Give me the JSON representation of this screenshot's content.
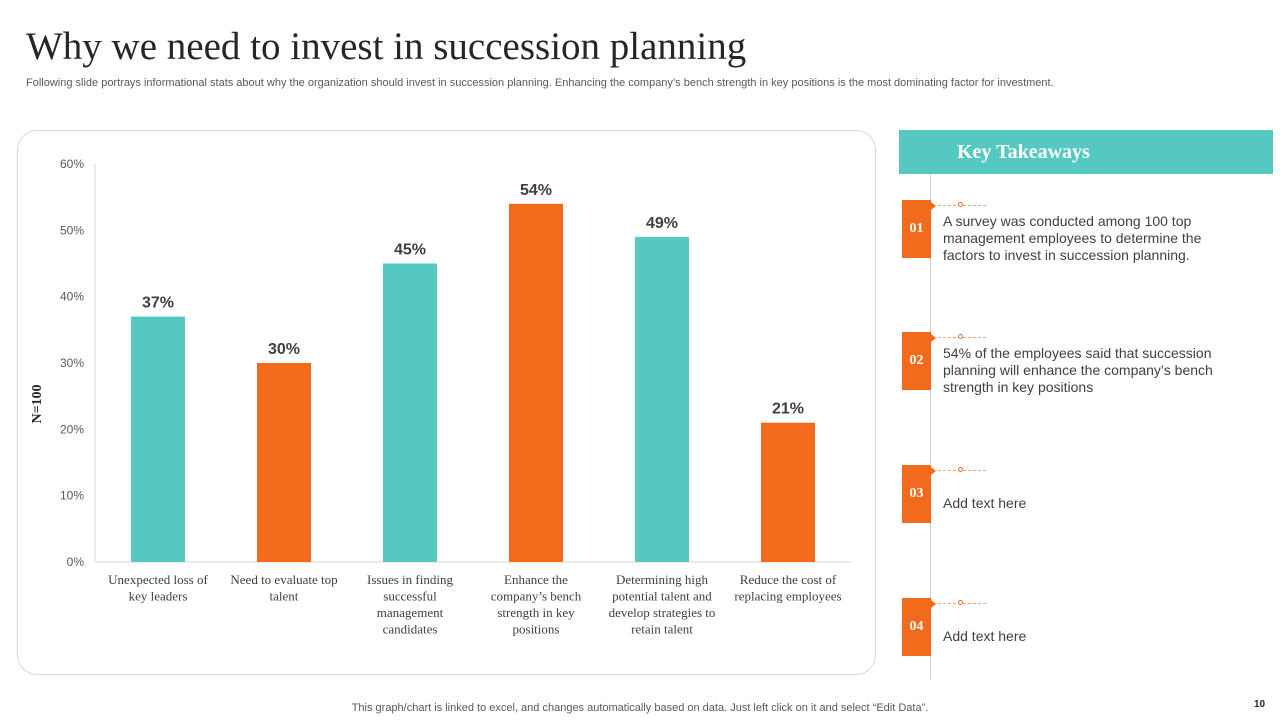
{
  "title": "Why we need to invest in succession planning",
  "subtitle": "Following slide portrays informational stats about why the organization should invest in succession planning. Enhancing the company’s bench strength in key positions is the most dominating factor for investment.",
  "chart_data": {
    "type": "bar",
    "categories": [
      [
        "Unexpected loss of",
        "key leaders"
      ],
      [
        "Need to evaluate top",
        "talent"
      ],
      [
        "Issues in finding",
        "successful",
        "management",
        "candidates"
      ],
      [
        "Enhance the",
        "company’s bench",
        "strength in key",
        "positions"
      ],
      [
        "Determining high",
        "potential talent and",
        "develop strategies to",
        "retain talent"
      ],
      [
        "Reduce the cost of",
        "replacing employees"
      ]
    ],
    "values": [
      37,
      30,
      45,
      54,
      49,
      21
    ],
    "value_labels": [
      "37%",
      "30%",
      "45%",
      "54%",
      "49%",
      "21%"
    ],
    "bar_colors": [
      "#56c8c2",
      "#f26b1d",
      "#56c8c2",
      "#f26b1d",
      "#56c8c2",
      "#f26b1d"
    ],
    "y_ticks": [
      0,
      10,
      20,
      30,
      40,
      50,
      60
    ],
    "y_tick_labels": [
      "0%",
      "10%",
      "20%",
      "30%",
      "40%",
      "50%",
      "60%"
    ],
    "ylim": [
      0,
      60
    ],
    "ylabel": "N=100",
    "xlabel": "",
    "title": "",
    "grid": false
  },
  "takeaways": {
    "header": "Key Takeaways",
    "items": [
      {
        "number": "01",
        "text": "A survey was conducted among 100 top management employees to determine the factors to invest in succession planning."
      },
      {
        "number": "02",
        "text": "54% of the employees said that succession planning will enhance the company’s bench strength in key positions"
      },
      {
        "number": "03",
        "text": "Add text here"
      },
      {
        "number": "04",
        "text": "Add text here"
      }
    ]
  },
  "colors": {
    "teal": "#56c8c2",
    "orange": "#f26b1d"
  },
  "footer_note": "This graph/chart is linked to excel,  and changes automatically based on data. Just left click on it and select “Edit Data”.",
  "page_number": "10"
}
